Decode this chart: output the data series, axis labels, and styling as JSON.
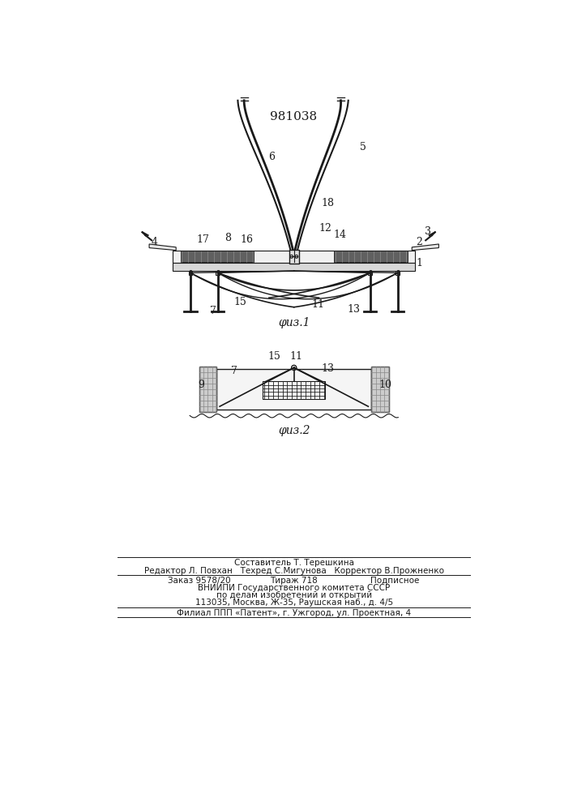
{
  "title": "981038",
  "background_color": "#ffffff",
  "line_color": "#1a1a1a",
  "fig1_caption": "φuз.1",
  "fig2_caption": "φuз.2",
  "footer_line1": "Составитель Т. Терешкина",
  "footer_line2": "Редактор Л. Повхан   Техред С.Мигунова   Корректор В.Прожненко",
  "footer_line3a": "Заказ 9578/20",
  "footer_line3b": "Тираж 718",
  "footer_line3c": "Подписное",
  "footer_line4": "ВНИИПИ Государственного комитета СССР",
  "footer_line5": "по делам изобретений и открытий",
  "footer_line6": "113035, Москва, Ж-35, Раушская наб., д. 4/5",
  "footer_line7": "Филиал ППП «Патент», г. Ужгород, ул. Проектная, 4"
}
